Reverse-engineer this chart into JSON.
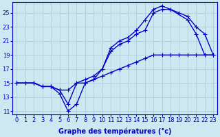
{
  "xlabel": "Graphe des températures (°c)",
  "bg_color": "#cde8f0",
  "grid_color": "#a8ccd8",
  "line_color": "#0000cc",
  "xlim": [
    -0.5,
    23.5
  ],
  "ylim": [
    10.5,
    26.5
  ],
  "xticks": [
    0,
    1,
    2,
    3,
    4,
    5,
    6,
    7,
    8,
    9,
    10,
    11,
    12,
    13,
    14,
    15,
    16,
    17,
    18,
    19,
    20,
    21,
    22,
    23
  ],
  "yticks": [
    11,
    13,
    15,
    17,
    19,
    21,
    23,
    25
  ],
  "line1_x": [
    0,
    1,
    2,
    3,
    4,
    5,
    6,
    7,
    8,
    9,
    10,
    11,
    12,
    13,
    14,
    15,
    16,
    17,
    18,
    19,
    20,
    21,
    22,
    23
  ],
  "line1_y": [
    15,
    15,
    15,
    14.5,
    14.5,
    14,
    14,
    15,
    15,
    15.5,
    16,
    16.5,
    17,
    17.5,
    18,
    18.5,
    19,
    19,
    19,
    19,
    19,
    19,
    19,
    19
  ],
  "line2_x": [
    0,
    2,
    3,
    4,
    5,
    6,
    7,
    8,
    9,
    10,
    11,
    12,
    13,
    14,
    15,
    16,
    17,
    18,
    20,
    21,
    22,
    23
  ],
  "line2_y": [
    15,
    15,
    14.5,
    14.5,
    13.5,
    11,
    12,
    15,
    15.5,
    17,
    19.5,
    20.5,
    21,
    22,
    22.5,
    25,
    25.5,
    25.5,
    24,
    22,
    19,
    19
  ],
  "line3_x": [
    0,
    2,
    3,
    4,
    5,
    6,
    7,
    8,
    9,
    10,
    11,
    12,
    13,
    14,
    15,
    16,
    17,
    18,
    19,
    20,
    21,
    22,
    23
  ],
  "line3_y": [
    15,
    15,
    14.5,
    14.5,
    14,
    12,
    15,
    15.5,
    16,
    17,
    20,
    21,
    21.5,
    22.5,
    24,
    25.5,
    26,
    25.5,
    25,
    24.5,
    23,
    22,
    19
  ],
  "markersize": 4,
  "linewidth": 1.0,
  "xlabel_fontsize": 7,
  "tick_fontsize": 6
}
